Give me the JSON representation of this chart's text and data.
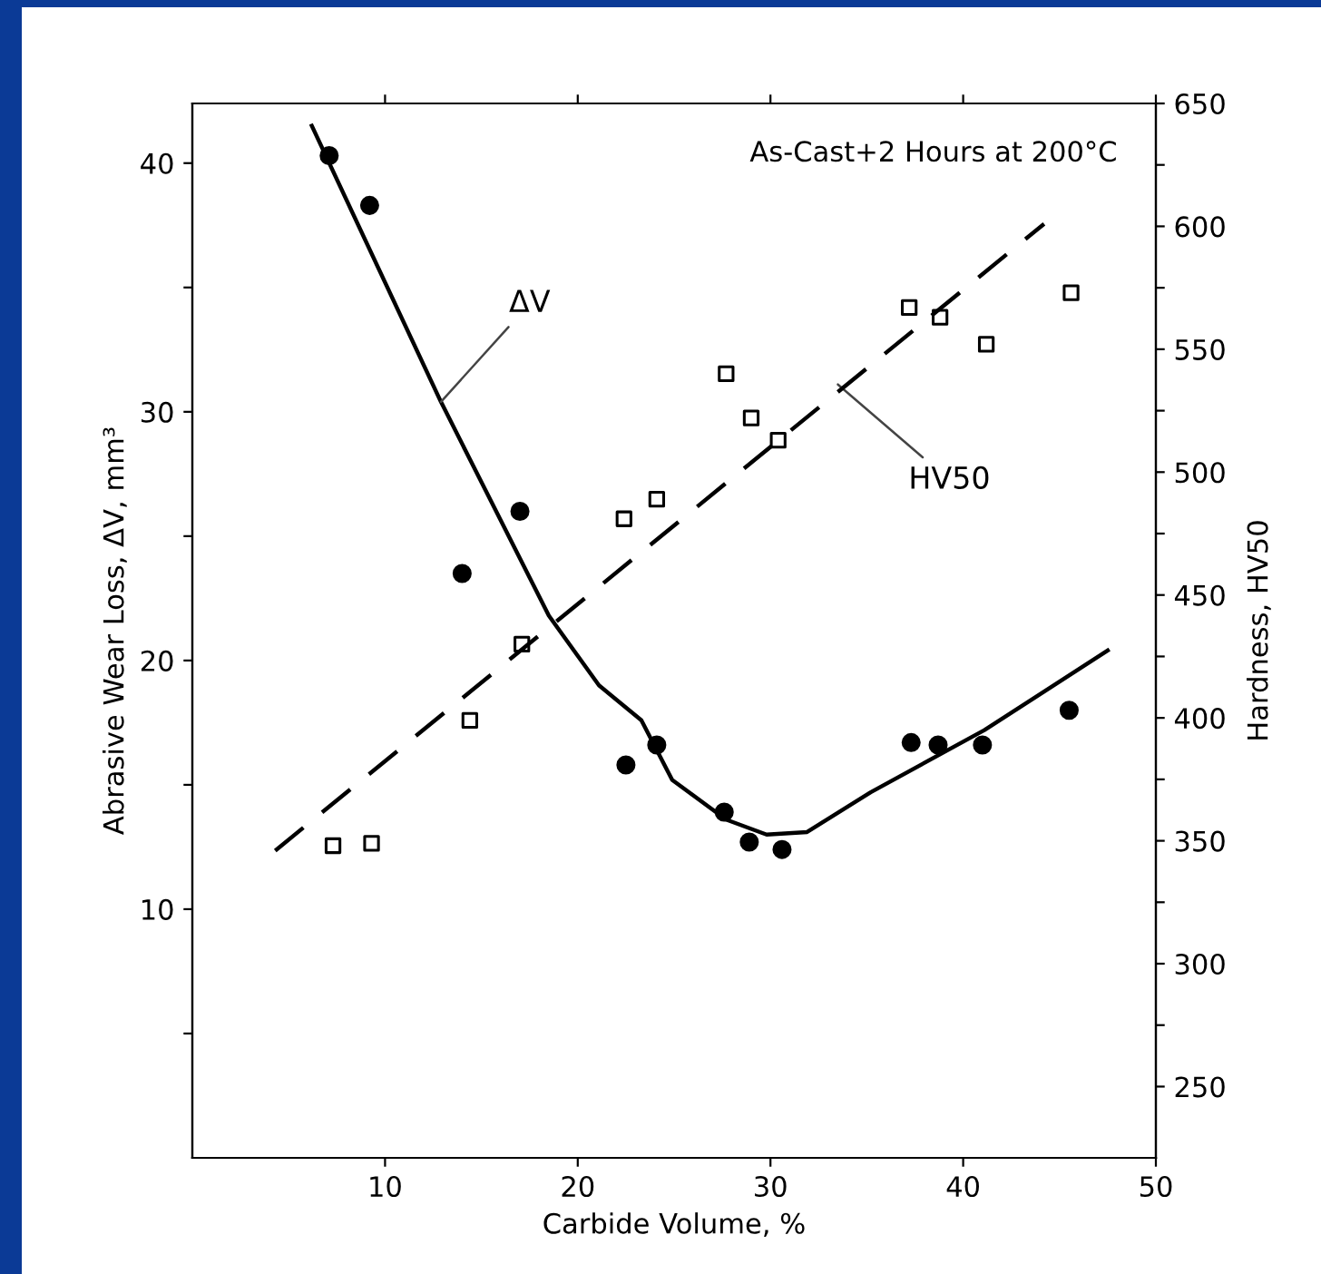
{
  "chart_data": {
    "type": "scatter",
    "title": "As-Cast+2 Hours at 200°C",
    "xlabel": "Carbide Volume, %",
    "ylabel": "Abrasive Wear Loss, ΔV, mm³",
    "y2label": "Hardness, HV50",
    "xlim": [
      0,
      50
    ],
    "xticks": [
      10,
      20,
      30,
      40,
      50
    ],
    "ylim": [
      0,
      42.4
    ],
    "yticks": [
      {
        "value": 5,
        "label": null
      },
      10,
      {
        "value": 15,
        "label": null
      },
      20,
      {
        "value": 25,
        "label": null
      },
      30,
      {
        "value": 35,
        "label": null
      },
      40
    ],
    "y2lim": [
      221,
      650
    ],
    "y2ticks": [
      250,
      {
        "value": 275,
        "label": null
      },
      300,
      {
        "value": 325,
        "label": null
      },
      350,
      {
        "value": 375,
        "label": null
      },
      400,
      {
        "value": 425,
        "label": null
      },
      450,
      {
        "value": 475,
        "label": null
      },
      500,
      {
        "value": 525,
        "label": null
      },
      550,
      {
        "value": 575,
        "label": null
      },
      600,
      {
        "value": 625,
        "label": null
      },
      650
    ],
    "grid": false,
    "legend": false,
    "series": [
      {
        "marker": "circle",
        "color": "#000000",
        "x": [
          7.1,
          9.2,
          14.0,
          17.0,
          22.5,
          24.1,
          27.6,
          28.9,
          30.6,
          37.3,
          38.7,
          41.0,
          45.5
        ],
        "values": [
          40.3,
          38.3,
          23.5,
          26.0,
          15.8,
          16.6,
          13.9,
          12.7,
          12.4,
          16.7,
          16.6,
          16.6,
          18.0
        ]
      },
      {
        "type": "line",
        "line_style": "solid",
        "color": "#000000",
        "x": [
          6.2,
          12.9,
          18.5,
          21.1,
          23.3,
          24.9,
          27.7,
          29.8,
          31.9,
          35.2,
          41.1,
          47.5
        ],
        "values": [
          41.5,
          30.4,
          21.8,
          19.0,
          17.6,
          15.2,
          13.6,
          13.0,
          13.1,
          14.7,
          17.2,
          20.4
        ]
      },
      {
        "marker": "square",
        "color": "#000000",
        "axis": "y2",
        "x": [
          7.3,
          9.3,
          14.4,
          17.1,
          22.4,
          24.1,
          27.7,
          29.0,
          30.4,
          37.2,
          38.8,
          41.2,
          45.6
        ],
        "values": [
          348,
          349,
          399,
          430,
          481,
          489,
          540,
          522,
          513,
          567,
          563,
          552,
          573
        ]
      },
      {
        "type": "line",
        "line_style": "dashed",
        "color": "#000000",
        "axis": "y2",
        "x": [
          4.3,
          44.2
        ],
        "values": [
          346,
          601
        ]
      }
    ],
    "annotations": [
      {
        "text": "ΔV",
        "x": 12.9,
        "y": 30.4
      },
      {
        "text": "HV50",
        "x": 33.5,
        "y": 31.1
      }
    ]
  }
}
